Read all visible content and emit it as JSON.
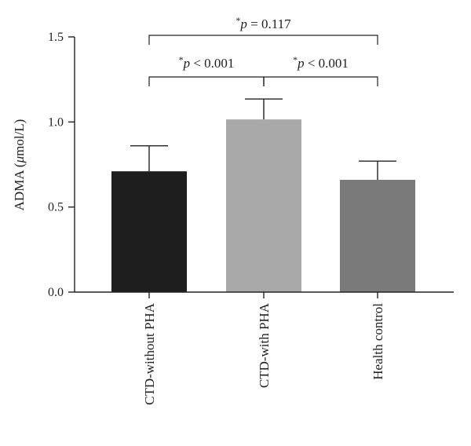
{
  "chart_data": {
    "type": "bar",
    "categories": [
      "CTD-without PHA",
      "CTD-with PHA",
      "Health control"
    ],
    "values": [
      0.71,
      1.015,
      0.66
    ],
    "errors": [
      0.15,
      0.12,
      0.11
    ],
    "colors": [
      "#1e1e1e",
      "#a9a9a9",
      "#7a7a7a"
    ],
    "ylabel_prefix": "ADMA (",
    "ylabel_mu": "μ",
    "ylabel_suffix": "mol/L)",
    "ylim": [
      0,
      1.5
    ],
    "yticks": [
      "0.0",
      "0.5",
      "1.0",
      "1.5"
    ],
    "ytick_values": [
      0,
      0.5,
      1.0,
      1.5
    ],
    "annotations": [
      {
        "star": "*",
        "p": "p",
        "text": " < 0.001",
        "from": 0,
        "to": 1,
        "level": 0.73
      },
      {
        "star": "*",
        "p": "p",
        "text": " < 0.001",
        "from": 1,
        "to": 2,
        "level": 0.73
      },
      {
        "star": "*",
        "p": "p",
        "text": " = 0.117",
        "from": 0,
        "to": 2,
        "level": 1.0
      }
    ]
  }
}
